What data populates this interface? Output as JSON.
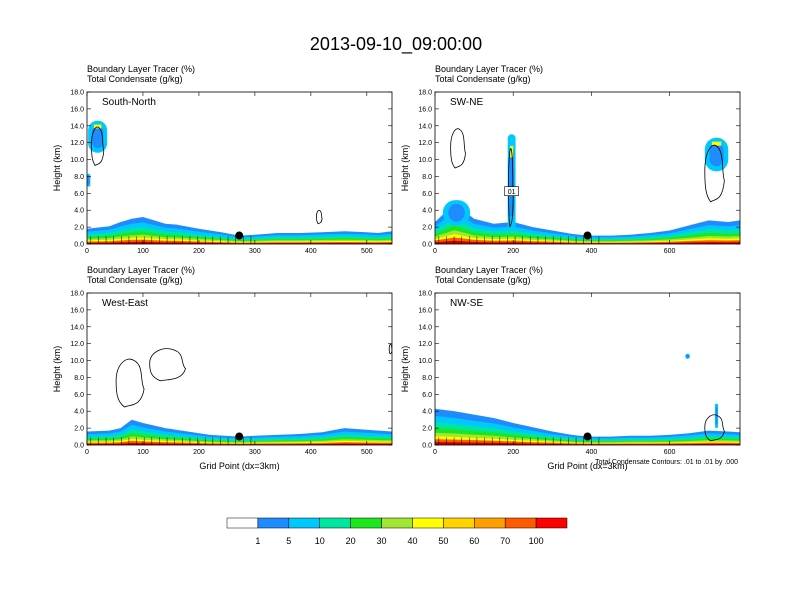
{
  "title": "2013-09-10_09:00:00",
  "colorbar": {
    "colors": [
      "#ffffff",
      "#1e8cff",
      "#00c8ff",
      "#00e6a0",
      "#1ee61e",
      "#a0e632",
      "#ffff00",
      "#ffd200",
      "#ffa000",
      "#ff5a00",
      "#ff0000"
    ],
    "labels": [
      "1",
      "5",
      "10",
      "20",
      "30",
      "40",
      "50",
      "60",
      "70",
      "100"
    ]
  },
  "note": "Total Condensate Contours: .01 to .01 by .000",
  "chart_data": [
    {
      "type": "heatmap",
      "title": "South-North",
      "subtitles": [
        "Boundary Layer Tracer   (%)",
        "Total Condensate   (g/kg)"
      ],
      "ylabel": "Height (km)",
      "xlabel": "",
      "xlim": [
        0,
        545
      ],
      "ylim": [
        0,
        18
      ],
      "xticks": [
        0,
        100,
        200,
        300,
        400,
        500
      ],
      "xtick_labels": [
        "0",
        "100",
        "200",
        "300",
        "400",
        "500"
      ],
      "yticks": [
        0,
        2,
        4,
        6,
        8,
        10,
        12,
        14,
        16,
        18
      ],
      "ytick_labels": [
        "0.0",
        "2.0",
        "4.0",
        "6.0",
        "8.0",
        "10.0",
        "12.0",
        "14.0",
        "16.0",
        "18.0"
      ],
      "marker": {
        "x": 272,
        "y": 1.0
      },
      "bl_profile": {
        "x": [
          0,
          40,
          60,
          80,
          100,
          120,
          140,
          160,
          200,
          240,
          272,
          300,
          340,
          380,
          420,
          460,
          500,
          520,
          545
        ],
        "top": [
          1.8,
          2.1,
          2.6,
          3.0,
          3.2,
          2.8,
          2.4,
          2.3,
          1.8,
          1.4,
          1.0,
          1.1,
          1.3,
          1.3,
          1.4,
          1.5,
          1.4,
          1.3,
          1.5
        ]
      },
      "cloud_fills": [
        {
          "x": [
            2,
            36
          ],
          "y": [
            10.8,
            14.6
          ]
        },
        {
          "x": [
            0,
            6
          ],
          "y": [
            6.8,
            8.3
          ]
        }
      ],
      "contours": [
        {
          "x": [
            8,
            30
          ],
          "y": [
            9.3,
            14.2
          ]
        },
        {
          "x": [
            410,
            420
          ],
          "y": [
            2.4,
            4.1
          ]
        }
      ]
    },
    {
      "type": "heatmap",
      "title": "SW-NE",
      "subtitles": [
        "Boundary Layer Tracer   (%)",
        "Total Condensate   (g/kg)"
      ],
      "ylabel": "Height (km)",
      "xlabel": "",
      "xlim": [
        0,
        780
      ],
      "ylim": [
        0,
        18
      ],
      "xticks": [
        0,
        200,
        400,
        600
      ],
      "xtick_labels": [
        "0",
        "200",
        "400",
        "600"
      ],
      "yticks": [
        0,
        2,
        4,
        6,
        8,
        10,
        12,
        14,
        16,
        18
      ],
      "ytick_labels": [
        "0.0",
        "2.0",
        "4.0",
        "6.0",
        "8.0",
        "10.0",
        "12.0",
        "14.0",
        "16.0",
        "18.0"
      ],
      "marker": {
        "x": 390,
        "y": 1.0
      },
      "bl_profile": {
        "x": [
          0,
          50,
          100,
          150,
          200,
          250,
          300,
          350,
          390,
          450,
          500,
          550,
          600,
          650,
          700,
          750,
          780
        ],
        "top": [
          2.6,
          4.8,
          3.0,
          2.4,
          2.6,
          2.0,
          1.6,
          1.2,
          1.0,
          1.0,
          1.1,
          1.3,
          1.6,
          2.2,
          2.8,
          2.6,
          2.8
        ]
      },
      "cloud_fills": [
        {
          "x": [
            186,
            206
          ],
          "y": [
            1.5,
            13.0
          ]
        },
        {
          "x": [
            690,
            750
          ],
          "y": [
            8.6,
            12.6
          ]
        },
        {
          "x": [
            20,
            90
          ],
          "y": [
            2.2,
            5.2
          ]
        }
      ],
      "contours": [
        {
          "x": [
            40,
            78
          ],
          "y": [
            9.0,
            14.0
          ]
        },
        {
          "x": [
            690,
            740
          ],
          "y": [
            5.0,
            12.2
          ]
        },
        {
          "x": [
            188,
            200
          ],
          "y": [
            2.0,
            12.0
          ]
        }
      ],
      "contour_label": {
        "text": "01",
        "x": 196,
        "y": 6.2
      }
    },
    {
      "type": "heatmap",
      "title": "West-East",
      "subtitles": [
        "Boundary Layer Tracer   (%)",
        "Total Condensate   (g/kg)"
      ],
      "ylabel": "Height (km)",
      "xlabel": "Grid Point (dx=3km)",
      "xlim": [
        0,
        545
      ],
      "ylim": [
        0,
        18
      ],
      "xticks": [
        0,
        100,
        200,
        300,
        400,
        500
      ],
      "xtick_labels": [
        "0",
        "100",
        "200",
        "300",
        "400",
        "500"
      ],
      "yticks": [
        0,
        2,
        4,
        6,
        8,
        10,
        12,
        14,
        16,
        18
      ],
      "ytick_labels": [
        "0.0",
        "2.0",
        "4.0",
        "6.0",
        "8.0",
        "10.0",
        "12.0",
        "14.0",
        "16.0",
        "18.0"
      ],
      "marker": {
        "x": 272,
        "y": 1.0
      },
      "bl_profile": {
        "x": [
          0,
          40,
          60,
          80,
          100,
          140,
          180,
          220,
          272,
          300,
          340,
          380,
          420,
          460,
          500,
          545
        ],
        "top": [
          1.6,
          1.7,
          2.0,
          3.0,
          2.6,
          2.0,
          1.6,
          1.2,
          1.0,
          1.1,
          1.2,
          1.3,
          1.5,
          2.0,
          1.8,
          1.6
        ]
      },
      "cloud_fills": [],
      "contours": [
        {
          "x": [
            52,
            102
          ],
          "y": [
            4.5,
            10.6
          ]
        },
        {
          "x": [
            112,
            176
          ],
          "y": [
            7.6,
            11.7
          ]
        },
        {
          "x": [
            540,
            545
          ],
          "y": [
            10.8,
            12.0
          ]
        }
      ]
    },
    {
      "type": "heatmap",
      "title": "NW-SE",
      "subtitles": [
        "Boundary Layer Tracer   (%)",
        "Total Condensate   (g/kg)"
      ],
      "ylabel": "Height (km)",
      "xlabel": "Grid Point (dx=3km)",
      "xlim": [
        0,
        780
      ],
      "ylim": [
        0,
        18
      ],
      "xticks": [
        0,
        200,
        400,
        600
      ],
      "xtick_labels": [
        "0",
        "200",
        "400",
        "600"
      ],
      "yticks": [
        0,
        2,
        4,
        6,
        8,
        10,
        12,
        14,
        16,
        18
      ],
      "ytick_labels": [
        "0.0",
        "2.0",
        "4.0",
        "6.0",
        "8.0",
        "10.0",
        "12.0",
        "14.0",
        "16.0",
        "18.0"
      ],
      "marker": {
        "x": 390,
        "y": 1.0
      },
      "bl_profile": {
        "x": [
          0,
          50,
          100,
          150,
          200,
          250,
          300,
          350,
          390,
          450,
          500,
          550,
          600,
          650,
          700,
          750,
          780
        ],
        "top": [
          4.3,
          4.0,
          3.6,
          3.2,
          2.6,
          2.1,
          1.6,
          1.2,
          1.0,
          1.0,
          1.1,
          1.1,
          1.2,
          1.4,
          1.7,
          1.6,
          1.5
        ]
      },
      "cloud_fills": [
        {
          "x": [
            716,
            724
          ],
          "y": [
            2.0,
            4.9
          ]
        },
        {
          "x": [
            640,
            652
          ],
          "y": [
            10.2,
            10.8
          ]
        }
      ],
      "contours": [
        {
          "x": [
            690,
            740
          ],
          "y": [
            0.5,
            3.8
          ]
        }
      ]
    }
  ]
}
